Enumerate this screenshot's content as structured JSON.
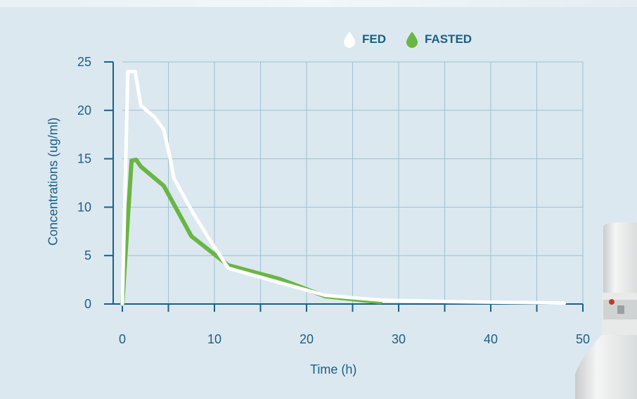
{
  "legend": [
    {
      "label": "FED",
      "color": "#ffffff"
    },
    {
      "label": "FASTED",
      "color": "#6ab544"
    }
  ],
  "colors": {
    "axis": "#1b5f85",
    "grid": "#9fc0d2",
    "fed": "#ffffff",
    "fasted": "#6ab544",
    "background": "#dbe8ef"
  },
  "chart_data": {
    "type": "line",
    "xlabel": "Time (h)",
    "ylabel": "Concentrations (ug/ml)",
    "xlim": [
      0,
      50
    ],
    "ylim": [
      0,
      25
    ],
    "xticks": [
      "0",
      "10",
      "20",
      "30",
      "40",
      "50"
    ],
    "yticks": [
      "0",
      "5",
      "10",
      "15",
      "20",
      "25"
    ],
    "grid": true,
    "legend_position": "top-right",
    "series": [
      {
        "name": "FED",
        "x": [
          0,
          0.6,
          1.4,
          2,
          3.5,
          4.5,
          5.2,
          5.6,
          7.5,
          9.5,
          11.5,
          22,
          28,
          35,
          48
        ],
        "y": [
          0,
          24,
          24,
          20.5,
          19.3,
          18,
          15,
          13,
          9.7,
          6.6,
          3.7,
          0.9,
          0.4,
          0.25,
          0.1
        ]
      },
      {
        "name": "FASTED",
        "x": [
          0,
          1,
          1.5,
          2,
          4.5,
          7.5,
          9.5,
          11.5,
          17,
          22,
          28
        ],
        "y": [
          0,
          14.8,
          14.9,
          14.2,
          12.2,
          7,
          5.5,
          4,
          2.6,
          0.8,
          0.2
        ]
      }
    ]
  }
}
